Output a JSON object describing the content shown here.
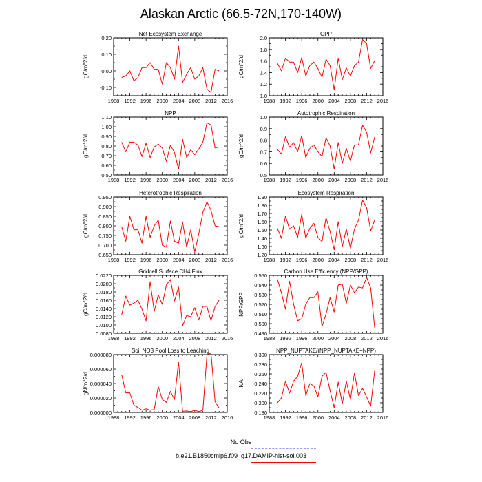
{
  "title": "Alaskan Arctic (66.5-72N,170-140W)",
  "colors": {
    "model": "#ff0000",
    "obs": "#9999ff",
    "axis": "#000000"
  },
  "legend": {
    "obs_label": "No Obs",
    "model_label": "b.e21.B1850cmip6.f09_g17.DAMIP-hist-sol.003"
  },
  "chart_data": [
    {
      "type": "line",
      "title": "Net Ecosystem Exchange",
      "ylabel": "gC/m^2/d",
      "x": [
        1990,
        1991,
        1992,
        1993,
        1994,
        1995,
        1996,
        1997,
        1998,
        1999,
        2000,
        2001,
        2002,
        2003,
        2004,
        2005,
        2006,
        2007,
        2008,
        2009,
        2010,
        2011,
        2012,
        2013,
        2014
      ],
      "series": [
        {
          "values": [
            -0.04,
            -0.03,
            0.0,
            -0.06,
            -0.04,
            0.02,
            0.02,
            0.05,
            0.01,
            0.01,
            -0.08,
            0.05,
            0.02,
            -0.05,
            0.15,
            -0.07,
            -0.02,
            0.02,
            -0.05,
            -0.03,
            0.02,
            -0.11,
            -0.13,
            0.01,
            0.0
          ]
        }
      ],
      "xlim": [
        1988,
        2016
      ],
      "ylim": [
        -0.15,
        0.2
      ],
      "xticks": [
        1988,
        1992,
        1996,
        2000,
        2004,
        2008,
        2012,
        2016
      ],
      "xtick_labels": [
        "1988",
        "1992",
        "1996",
        "2000",
        "2004",
        "2008",
        "2012",
        "2016"
      ],
      "yticks": [
        -0.1,
        0.0,
        0.1,
        0.2
      ],
      "ytick_labels": [
        "-0.10",
        "0.00",
        "0.10",
        "0.20"
      ]
    },
    {
      "type": "line",
      "title": "GPP",
      "ylabel": "gC/m^2/d",
      "x": [
        1990,
        1991,
        1992,
        1993,
        1994,
        1995,
        1996,
        1997,
        1998,
        1999,
        2000,
        2001,
        2002,
        2003,
        2004,
        2005,
        2006,
        2007,
        2008,
        2009,
        2010,
        2011,
        2012,
        2013,
        2014
      ],
      "series": [
        {
          "values": [
            1.56,
            1.43,
            1.65,
            1.58,
            1.58,
            1.4,
            1.66,
            1.34,
            1.52,
            1.58,
            1.47,
            1.32,
            1.63,
            1.52,
            1.1,
            1.65,
            1.28,
            1.48,
            1.34,
            1.52,
            1.58,
            1.97,
            1.9,
            1.47,
            1.61
          ]
        }
      ],
      "xlim": [
        1988,
        2016
      ],
      "ylim": [
        1.0,
        2.0
      ],
      "xticks": [
        1988,
        1992,
        1996,
        2000,
        2004,
        2008,
        2012,
        2016
      ],
      "xtick_labels": [
        "1988",
        "1992",
        "1996",
        "2000",
        "2004",
        "2008",
        "2012",
        "2016"
      ],
      "yticks": [
        1.0,
        1.2,
        1.4,
        1.6,
        1.8,
        2.0
      ],
      "ytick_labels": [
        "1.0",
        "1.2",
        "1.4",
        "1.6",
        "1.8",
        "2.0"
      ]
    },
    {
      "type": "line",
      "title": "NPP",
      "ylabel": "gC/m^2/d",
      "x": [
        1990,
        1991,
        1992,
        1993,
        1994,
        1995,
        1996,
        1997,
        1998,
        1999,
        2000,
        2001,
        2002,
        2003,
        2004,
        2005,
        2006,
        2007,
        2008,
        2009,
        2010,
        2011,
        2012,
        2013,
        2014
      ],
      "series": [
        {
          "values": [
            0.84,
            0.74,
            0.84,
            0.84,
            0.81,
            0.69,
            0.83,
            0.68,
            0.79,
            0.82,
            0.78,
            0.64,
            0.81,
            0.73,
            0.56,
            0.87,
            0.68,
            0.76,
            0.71,
            0.77,
            0.84,
            1.04,
            1.02,
            0.78,
            0.79
          ]
        }
      ],
      "xlim": [
        1988,
        2016
      ],
      "ylim": [
        0.5,
        1.1
      ],
      "xticks": [
        1988,
        1992,
        1996,
        2000,
        2004,
        2008,
        2012,
        2016
      ],
      "xtick_labels": [
        "1988",
        "1992",
        "1996",
        "2000",
        "2004",
        "2008",
        "2012",
        "2016"
      ],
      "yticks": [
        0.5,
        0.6,
        0.7,
        0.8,
        0.9,
        1.0,
        1.1
      ],
      "ytick_labels": [
        "0.50",
        "0.60",
        "0.70",
        "0.80",
        "0.90",
        "1.00",
        "1.10"
      ]
    },
    {
      "type": "line",
      "title": "Autotrophic Respiration",
      "ylabel": "gC/m^2/d",
      "x": [
        1990,
        1991,
        1992,
        1993,
        1994,
        1995,
        1996,
        1997,
        1998,
        1999,
        2000,
        2001,
        2002,
        2003,
        2004,
        2005,
        2006,
        2007,
        2008,
        2009,
        2010,
        2011,
        2012,
        2013,
        2014
      ],
      "series": [
        {
          "values": [
            0.72,
            0.68,
            0.83,
            0.74,
            0.78,
            0.7,
            0.84,
            0.65,
            0.73,
            0.76,
            0.7,
            0.66,
            0.82,
            0.75,
            0.55,
            0.78,
            0.6,
            0.73,
            0.62,
            0.76,
            0.76,
            0.93,
            0.87,
            0.69,
            0.83
          ]
        }
      ],
      "xlim": [
        1988,
        2016
      ],
      "ylim": [
        0.5,
        1.0
      ],
      "xticks": [
        1988,
        1992,
        1996,
        2000,
        2004,
        2008,
        2012,
        2016
      ],
      "xtick_labels": [
        "1988",
        "1992",
        "1996",
        "2000",
        "2004",
        "2008",
        "2012",
        "2016"
      ],
      "yticks": [
        0.5,
        0.6,
        0.7,
        0.8,
        0.9,
        1.0
      ],
      "ytick_labels": [
        "0.5",
        "0.6",
        "0.7",
        "0.8",
        "0.9",
        "1.0"
      ]
    },
    {
      "type": "line",
      "title": "Heterotrophic Respiration",
      "ylabel": "gC/m^2/d",
      "x": [
        1990,
        1991,
        1992,
        1993,
        1994,
        1995,
        1996,
        1997,
        1998,
        1999,
        2000,
        2001,
        2002,
        2003,
        2004,
        2005,
        2006,
        2007,
        2008,
        2009,
        2010,
        2011,
        2012,
        2013,
        2014
      ],
      "series": [
        {
          "values": [
            0.795,
            0.72,
            0.85,
            0.78,
            0.78,
            0.71,
            0.85,
            0.74,
            0.8,
            0.83,
            0.7,
            0.69,
            0.825,
            0.72,
            0.71,
            0.82,
            0.69,
            0.78,
            0.665,
            0.76,
            0.87,
            0.925,
            0.88,
            0.8,
            0.795
          ]
        }
      ],
      "xlim": [
        1988,
        2016
      ],
      "ylim": [
        0.65,
        0.95
      ],
      "xticks": [
        1988,
        1992,
        1996,
        2000,
        2004,
        2008,
        2012,
        2016
      ],
      "xtick_labels": [
        "1988",
        "1992",
        "1996",
        "2000",
        "2004",
        "2008",
        "2012",
        "2016"
      ],
      "yticks": [
        0.65,
        0.7,
        0.75,
        0.8,
        0.85,
        0.9,
        0.95
      ],
      "ytick_labels": [
        "0.650",
        "0.700",
        "0.750",
        "0.800",
        "0.850",
        "0.900",
        "0.950"
      ]
    },
    {
      "type": "line",
      "title": "Ecosystem Respiration",
      "ylabel": "gC/m^2/d",
      "x": [
        1990,
        1991,
        1992,
        1993,
        1994,
        1995,
        1996,
        1997,
        1998,
        1999,
        2000,
        2001,
        2002,
        2003,
        2004,
        2005,
        2006,
        2007,
        2008,
        2009,
        2010,
        2011,
        2012,
        2013,
        2014
      ],
      "series": [
        {
          "values": [
            1.52,
            1.4,
            1.67,
            1.51,
            1.55,
            1.41,
            1.69,
            1.4,
            1.52,
            1.58,
            1.41,
            1.36,
            1.65,
            1.48,
            1.26,
            1.6,
            1.3,
            1.51,
            1.28,
            1.51,
            1.62,
            1.86,
            1.77,
            1.49,
            1.62
          ]
        }
      ],
      "xlim": [
        1988,
        2016
      ],
      "ylim": [
        1.2,
        1.9
      ],
      "xticks": [
        1988,
        1992,
        1996,
        2000,
        2004,
        2008,
        2012,
        2016
      ],
      "xtick_labels": [
        "1988",
        "1992",
        "1996",
        "2000",
        "2004",
        "2008",
        "2012",
        "2016"
      ],
      "yticks": [
        1.2,
        1.3,
        1.4,
        1.5,
        1.6,
        1.7,
        1.8,
        1.9
      ],
      "ytick_labels": [
        "1.20",
        "1.30",
        "1.40",
        "1.50",
        "1.60",
        "1.70",
        "1.80",
        "1.90"
      ]
    },
    {
      "type": "line",
      "title": "Gridcell Surface CH4 Flux",
      "ylabel": "gC/m^2/d",
      "x": [
        1990,
        1991,
        1992,
        1993,
        1994,
        1995,
        1996,
        1997,
        1998,
        1999,
        2000,
        2001,
        2002,
        2003,
        2004,
        2005,
        2006,
        2007,
        2008,
        2009,
        2010,
        2011,
        2012,
        2013,
        2014
      ],
      "series": [
        {
          "values": [
            0.0125,
            0.017,
            0.0148,
            0.0153,
            0.016,
            0.0138,
            0.011,
            0.0205,
            0.0133,
            0.0173,
            0.015,
            0.0197,
            0.021,
            0.0158,
            0.0192,
            0.0098,
            0.0123,
            0.012,
            0.0142,
            0.0112,
            0.0145,
            0.0145,
            0.011,
            0.0145,
            0.016
          ]
        }
      ],
      "xlim": [
        1988,
        2016
      ],
      "ylim": [
        0.008,
        0.022
      ],
      "xticks": [
        1988,
        1992,
        1996,
        2000,
        2004,
        2008,
        2012,
        2016
      ],
      "xtick_labels": [
        "1988",
        "1992",
        "1996",
        "2000",
        "2004",
        "2008",
        "2012",
        "2016"
      ],
      "yticks": [
        0.008,
        0.01,
        0.012,
        0.014,
        0.016,
        0.018,
        0.02,
        0.022
      ],
      "ytick_labels": [
        "0.0080",
        "0.0100",
        "0.0120",
        "0.0140",
        "0.0160",
        "0.0180",
        "0.0200",
        "0.0220"
      ]
    },
    {
      "type": "line",
      "title": "Carbon Use Efficiency (NPP/GPP)",
      "ylabel": "NPP/GPP",
      "x": [
        1990,
        1991,
        1992,
        1993,
        1994,
        1995,
        1996,
        1997,
        1998,
        1999,
        2000,
        2001,
        2002,
        2003,
        2004,
        2005,
        2006,
        2007,
        2008,
        2009,
        2010,
        2011,
        2012,
        2013,
        2014
      ],
      "series": [
        {
          "values": [
            0.546,
            0.532,
            0.515,
            0.544,
            0.52,
            0.503,
            0.505,
            0.52,
            0.527,
            0.527,
            0.533,
            0.497,
            0.51,
            0.527,
            0.512,
            0.54,
            0.541,
            0.521,
            0.54,
            0.532,
            0.538,
            0.537,
            0.548,
            0.537,
            0.495
          ]
        }
      ],
      "xlim": [
        1988,
        2016
      ],
      "ylim": [
        0.49,
        0.55
      ],
      "xticks": [
        1988,
        1992,
        1996,
        2000,
        2004,
        2008,
        2012,
        2016
      ],
      "xtick_labels": [
        "1988",
        "1992",
        "1996",
        "2000",
        "2004",
        "2008",
        "2012",
        "2016"
      ],
      "yticks": [
        0.49,
        0.5,
        0.51,
        0.52,
        0.53,
        0.54,
        0.55
      ],
      "ytick_labels": [
        "0.490",
        "0.500",
        "0.510",
        "0.520",
        "0.530",
        "0.540",
        "0.550"
      ]
    },
    {
      "type": "line",
      "title": "Soil NO3 Pool Loss to Leaching",
      "ylabel": "gN/m^2/d",
      "x": [
        1990,
        1991,
        1992,
        1993,
        1994,
        1995,
        1996,
        1997,
        1998,
        1999,
        2000,
        2001,
        2002,
        2003,
        2004,
        2005,
        2006,
        2007,
        2008,
        2009,
        2010,
        2011,
        2012,
        2013,
        2014
      ],
      "series": [
        {
          "values": [
            5.2e-05,
            2.7e-05,
            2.7e-05,
            1e-05,
            7e-06,
            3e-06,
            5e-06,
            3e-06,
            4e-06,
            3.6e-05,
            1.8e-05,
            1.4e-05,
            2.9e-05,
            1.8e-05,
            7e-05,
            1.5e-06,
            2e-06,
            1e-06,
            3e-06,
            1e-06,
            3e-06,
            8e-05,
            8.2e-05,
            1.5e-05,
            6e-06
          ]
        }
      ],
      "xlim": [
        1988,
        2016
      ],
      "ylim": [
        0,
        8e-05
      ],
      "xticks": [
        1988,
        1992,
        1996,
        2000,
        2004,
        2008,
        2012,
        2016
      ],
      "xtick_labels": [
        "1988",
        "1992",
        "1996",
        "2000",
        "2004",
        "2008",
        "2012",
        "2016"
      ],
      "yticks": [
        0,
        2e-05,
        4e-05,
        6e-05,
        8e-05
      ],
      "ytick_labels": [
        "0.000000",
        "0.000020",
        "0.000040",
        "0.000060",
        "0.000080"
      ]
    },
    {
      "type": "line",
      "title": "NPP_NUPTAKE/(NPP_NUPTAKE+NPP)",
      "ylabel": "NA",
      "x": [
        1990,
        1991,
        1992,
        1993,
        1994,
        1995,
        1996,
        1997,
        1998,
        1999,
        2000,
        2001,
        2002,
        2003,
        2004,
        2005,
        2006,
        2007,
        2008,
        2009,
        2010,
        2011,
        2012,
        2013,
        2014
      ],
      "series": [
        {
          "values": [
            0.2,
            0.21,
            0.245,
            0.22,
            0.245,
            0.255,
            0.283,
            0.215,
            0.24,
            0.235,
            0.212,
            0.255,
            0.263,
            0.225,
            0.19,
            0.243,
            0.198,
            0.245,
            0.207,
            0.262,
            0.215,
            0.23,
            0.212,
            0.193,
            0.268
          ]
        }
      ],
      "xlim": [
        1988,
        2016
      ],
      "ylim": [
        0.18,
        0.3
      ],
      "xticks": [
        1988,
        1992,
        1996,
        2000,
        2004,
        2008,
        2012,
        2016
      ],
      "xtick_labels": [
        "1988",
        "1992",
        "1996",
        "2000",
        "2004",
        "2008",
        "2012",
        "2016"
      ],
      "yticks": [
        0.18,
        0.2,
        0.22,
        0.24,
        0.26,
        0.28,
        0.3
      ],
      "ytick_labels": [
        "0.180",
        "0.200",
        "0.220",
        "0.240",
        "0.260",
        "0.280",
        "0.300"
      ]
    }
  ]
}
